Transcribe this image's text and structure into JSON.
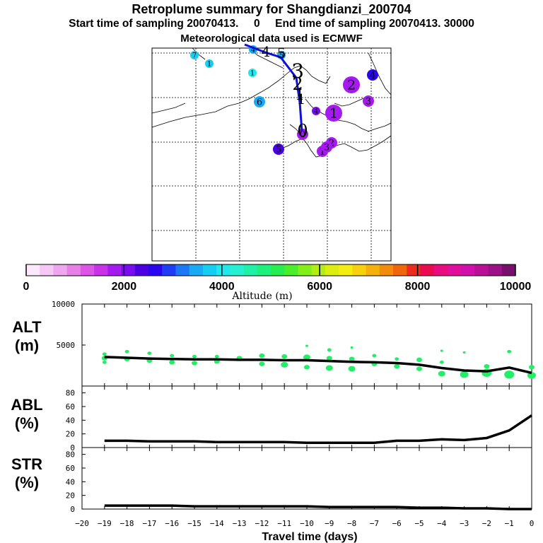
{
  "header": {
    "title": "Retroplume summary for Shangdianzi_200704",
    "sampling_line": "Start time of sampling 20070413.     0     End time of sampling 20070413. 30000",
    "met_line": "Meteorological data used is ECMWF"
  },
  "colors": {
    "track": "#1010dd",
    "alt_points": "#22ee66",
    "line": "#000000"
  },
  "colorbar": {
    "label": "Altitude  (m)",
    "min": 0,
    "max": 10000,
    "tick_labels": [
      "0",
      "2000",
      "4000",
      "6000",
      "8000",
      "10000"
    ],
    "tick_values": [
      0,
      2000,
      4000,
      6000,
      8000,
      10000
    ],
    "colors": [
      "#fbe8fb",
      "#f5c8f5",
      "#efa6ef",
      "#e67fe6",
      "#dc55e6",
      "#c833e8",
      "#a51aee",
      "#7a0df0",
      "#4a00e0",
      "#2a06f0",
      "#1f3df5",
      "#1e78f5",
      "#1aa9f5",
      "#16cff0",
      "#20e8ec",
      "#26f0d2",
      "#20f0a8",
      "#1ef07c",
      "#26ee50",
      "#4aee2a",
      "#82ee1a",
      "#b2ee16",
      "#dcee10",
      "#f5ec10",
      "#f7d20c",
      "#f5b00c",
      "#f38c0c",
      "#f0660c",
      "#ed2c1e",
      "#ea0a50",
      "#e80c80",
      "#df0e9c",
      "#d010a8",
      "#b81096",
      "#9c1088",
      "#7a0e6c"
    ]
  },
  "map": {
    "plume_labels": [
      {
        "label": "7",
        "day": -7,
        "color": "#16cff0",
        "size": "small"
      },
      {
        "label": "1",
        "day": -1,
        "color": "#16cff0",
        "size": "small"
      },
      {
        "label": "4",
        "day": -4,
        "color": "#1aa9f5",
        "size": "small"
      },
      {
        "label": "1",
        "day": -1,
        "color": "#20e8ec",
        "size": "small"
      },
      {
        "label": "5",
        "day": -5,
        "color": "#1aa9f5",
        "size": "small"
      },
      {
        "label": "4",
        "day": -4,
        "color": "#2a06f0",
        "size": "medium"
      },
      {
        "label": "2",
        "day": -2,
        "color": "#a51aee",
        "size": "large"
      },
      {
        "label": "3",
        "day": -3,
        "color": "#a51aee",
        "size": "medium"
      },
      {
        "label": "6",
        "day": -6,
        "color": "#1aa9f5",
        "size": "medium"
      },
      {
        "label": "1",
        "day": -1,
        "color": "#a51aee",
        "size": "large"
      },
      {
        "label": "4",
        "day": -4,
        "color": "#7a0df0",
        "size": "small"
      },
      {
        "label": "0",
        "day": 0,
        "color": "#a51aee",
        "size": "medium"
      },
      {
        "label": "5",
        "day": -5,
        "color": "#4a00e0",
        "size": "medium"
      },
      {
        "label": "2",
        "day": -2,
        "color": "#a51aee",
        "size": "medium"
      },
      {
        "label": "1",
        "day": -1,
        "color": "#a51aee",
        "size": "medium"
      },
      {
        "label": "3",
        "day": -3,
        "color": "#a51aee",
        "size": "medium"
      }
    ],
    "track_labels": [
      {
        "label": "4",
        "day": -4
      },
      {
        "label": "5",
        "day": -5
      },
      {
        "label": "3",
        "day": -3
      },
      {
        "label": "2",
        "day": -2
      },
      {
        "label": "1",
        "day": -1
      },
      {
        "label": "1",
        "day": -1
      },
      {
        "label": "0",
        "day": 0
      }
    ]
  },
  "chart_data": [
    {
      "type": "scatter",
      "panel": "ALT",
      "ylabel": "ALT\n(m)",
      "ylabel_top": "ALT",
      "ylabel_unit": "(m)",
      "xlabel": "Travel time (days)",
      "x_ticks": [
        -20,
        -19,
        -18,
        -17,
        -16,
        -15,
        -14,
        -13,
        -12,
        -11,
        -10,
        -9,
        -8,
        -7,
        -6,
        -5,
        -4,
        -3,
        -2,
        -1,
        0
      ],
      "x_tick_labels": [
        "−20",
        "−19",
        "−18",
        "−17",
        "−16",
        "−15",
        "−14",
        "−13",
        "−12",
        "−11",
        "−10",
        "−9",
        "−8",
        "−7",
        "−6",
        "−5",
        "−4",
        "−3",
        "−2",
        "−1",
        "0"
      ],
      "xlim": [
        -20,
        0
      ],
      "ylim": [
        0,
        10000
      ],
      "y_ticks": [
        5000,
        10000
      ],
      "y_tick_labels": [
        "5000",
        "10000"
      ],
      "mean_line": {
        "x": [
          -19,
          -18,
          -17,
          -16,
          -15,
          -14,
          -13,
          -12,
          -11,
          -10,
          -9,
          -8,
          -7,
          -6,
          -5,
          -4,
          -3,
          -2,
          -1,
          0
        ],
        "y": [
          3550,
          3450,
          3350,
          3300,
          3250,
          3250,
          3200,
          3200,
          3150,
          3150,
          3050,
          2950,
          2900,
          2800,
          2600,
          2200,
          1900,
          1800,
          2250,
          1600
        ]
      },
      "points": [
        {
          "x": -19,
          "y": 3900,
          "r": 3
        },
        {
          "x": -19,
          "y": 3400,
          "r": 4
        },
        {
          "x": -19,
          "y": 2900,
          "r": 3
        },
        {
          "x": -18,
          "y": 4200,
          "r": 3
        },
        {
          "x": -18,
          "y": 3300,
          "r": 4
        },
        {
          "x": -17,
          "y": 4000,
          "r": 3
        },
        {
          "x": -17,
          "y": 3100,
          "r": 4
        },
        {
          "x": -16,
          "y": 3700,
          "r": 3
        },
        {
          "x": -16,
          "y": 2900,
          "r": 4
        },
        {
          "x": -15,
          "y": 3600,
          "r": 3
        },
        {
          "x": -15,
          "y": 2800,
          "r": 4
        },
        {
          "x": -14,
          "y": 3600,
          "r": 3
        },
        {
          "x": -14,
          "y": 3000,
          "r": 4
        },
        {
          "x": -13,
          "y": 3400,
          "r": 4
        },
        {
          "x": -12,
          "y": 3700,
          "r": 4
        },
        {
          "x": -12,
          "y": 2700,
          "r": 4
        },
        {
          "x": -11,
          "y": 3600,
          "r": 4
        },
        {
          "x": -11,
          "y": 2600,
          "r": 5
        },
        {
          "x": -10,
          "y": 4900,
          "r": 2
        },
        {
          "x": -10,
          "y": 3500,
          "r": 5
        },
        {
          "x": -10,
          "y": 2300,
          "r": 4
        },
        {
          "x": -9,
          "y": 4400,
          "r": 3
        },
        {
          "x": -9,
          "y": 3400,
          "r": 4
        },
        {
          "x": -9,
          "y": 2200,
          "r": 5
        },
        {
          "x": -8,
          "y": 4700,
          "r": 2
        },
        {
          "x": -8,
          "y": 3300,
          "r": 4
        },
        {
          "x": -8,
          "y": 2100,
          "r": 5
        },
        {
          "x": -7,
          "y": 3700,
          "r": 3
        },
        {
          "x": -7,
          "y": 2700,
          "r": 4
        },
        {
          "x": -6,
          "y": 3300,
          "r": 3
        },
        {
          "x": -6,
          "y": 2400,
          "r": 4
        },
        {
          "x": -5,
          "y": 3200,
          "r": 4
        },
        {
          "x": -5,
          "y": 2100,
          "r": 4
        },
        {
          "x": -4,
          "y": 4300,
          "r": 2
        },
        {
          "x": -4,
          "y": 2900,
          "r": 3
        },
        {
          "x": -4,
          "y": 1500,
          "r": 5
        },
        {
          "x": -3,
          "y": 4100,
          "r": 2
        },
        {
          "x": -3,
          "y": 1400,
          "r": 6
        },
        {
          "x": -2,
          "y": 2400,
          "r": 4
        },
        {
          "x": -2,
          "y": 1600,
          "r": 7
        },
        {
          "x": -1,
          "y": 4200,
          "r": 3
        },
        {
          "x": -1,
          "y": 1400,
          "r": 7
        },
        {
          "x": 0,
          "y": 2300,
          "r": 4
        },
        {
          "x": 0,
          "y": 1300,
          "r": 6
        }
      ]
    },
    {
      "type": "line",
      "panel": "ABL",
      "ylabel_top": "ABL",
      "ylabel_unit": "(%)",
      "xlim": [
        -20,
        0
      ],
      "ylim": [
        0,
        90
      ],
      "y_ticks": [
        0,
        20,
        40,
        60,
        80
      ],
      "y_tick_labels": [
        "0",
        "20",
        "40",
        "60",
        "80"
      ],
      "x": [
        -19,
        -18,
        -17,
        -16,
        -15,
        -14,
        -13,
        -12,
        -11,
        -10,
        -9,
        -8,
        -7,
        -6,
        -5,
        -4,
        -3,
        -2,
        -1,
        0
      ],
      "y": [
        10,
        10,
        9,
        9,
        9,
        8,
        8,
        8,
        8,
        7,
        7,
        7,
        7,
        10,
        10,
        12,
        11,
        14,
        25,
        47
      ]
    },
    {
      "type": "line",
      "panel": "STR",
      "ylabel_top": "STR",
      "ylabel_unit": "(%)",
      "xlim": [
        -20,
        0
      ],
      "ylim": [
        0,
        90
      ],
      "y_ticks": [
        0,
        20,
        40,
        60,
        80
      ],
      "y_tick_labels": [
        "0",
        "20",
        "40",
        "60",
        "80"
      ],
      "x": [
        -19,
        -18,
        -17,
        -16,
        -15,
        -14,
        -13,
        -12,
        -11,
        -10,
        -9,
        -8,
        -7,
        -6,
        -5,
        -4,
        -3,
        -2,
        -1,
        0
      ],
      "y": [
        5,
        5,
        5,
        5,
        4,
        4,
        4,
        4,
        4,
        4,
        3,
        3,
        3,
        3,
        2,
        2,
        1,
        1,
        0,
        0
      ]
    }
  ]
}
